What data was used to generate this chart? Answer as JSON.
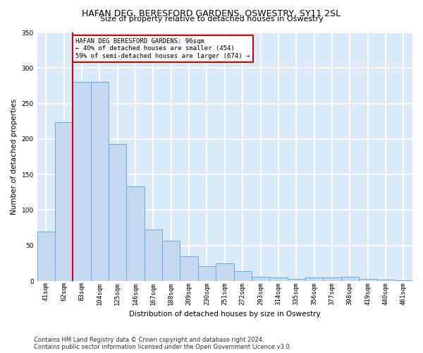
{
  "title1": "HAFAN DEG, BERESFORD GARDENS, OSWESTRY, SY11 2SL",
  "title2": "Size of property relative to detached houses in Oswestry",
  "xlabel": "Distribution of detached houses by size in Oswestry",
  "ylabel": "Number of detached properties",
  "categories": [
    "41sqm",
    "62sqm",
    "83sqm",
    "104sqm",
    "125sqm",
    "146sqm",
    "167sqm",
    "188sqm",
    "209sqm",
    "230sqm",
    "251sqm",
    "272sqm",
    "293sqm",
    "314sqm",
    "335sqm",
    "356sqm",
    "377sqm",
    "398sqm",
    "419sqm",
    "440sqm",
    "461sqm"
  ],
  "bar_values": [
    70,
    224,
    280,
    280,
    193,
    133,
    73,
    57,
    35,
    21,
    25,
    14,
    6,
    5,
    3,
    5,
    5,
    6,
    3,
    2,
    1
  ],
  "bar_color": "#c5d9f0",
  "bar_edge_color": "#6baed6",
  "annotation_text": "HAFAN DEG BERESFORD GARDENS: 96sqm\n← 40% of detached houses are smaller (454)\n59% of semi-detached houses are larger (674) →",
  "annotation_box_color": "#ffffff",
  "annotation_box_edge_color": "#cc0000",
  "vline_x": 1.5,
  "vline_color": "#cc0000",
  "ylim": [
    0,
    350
  ],
  "yticks": [
    0,
    50,
    100,
    150,
    200,
    250,
    300,
    350
  ],
  "background_color": "#dce9f8",
  "grid_color": "#ffffff",
  "footer": "Contains HM Land Registry data © Crown copyright and database right 2024.\nContains public sector information licensed under the Open Government Licence v3.0.",
  "title1_fontsize": 9,
  "title2_fontsize": 8,
  "axis_label_fontsize": 7.5,
  "tick_fontsize": 6.5,
  "annotation_fontsize": 6.5,
  "footer_fontsize": 6.0
}
